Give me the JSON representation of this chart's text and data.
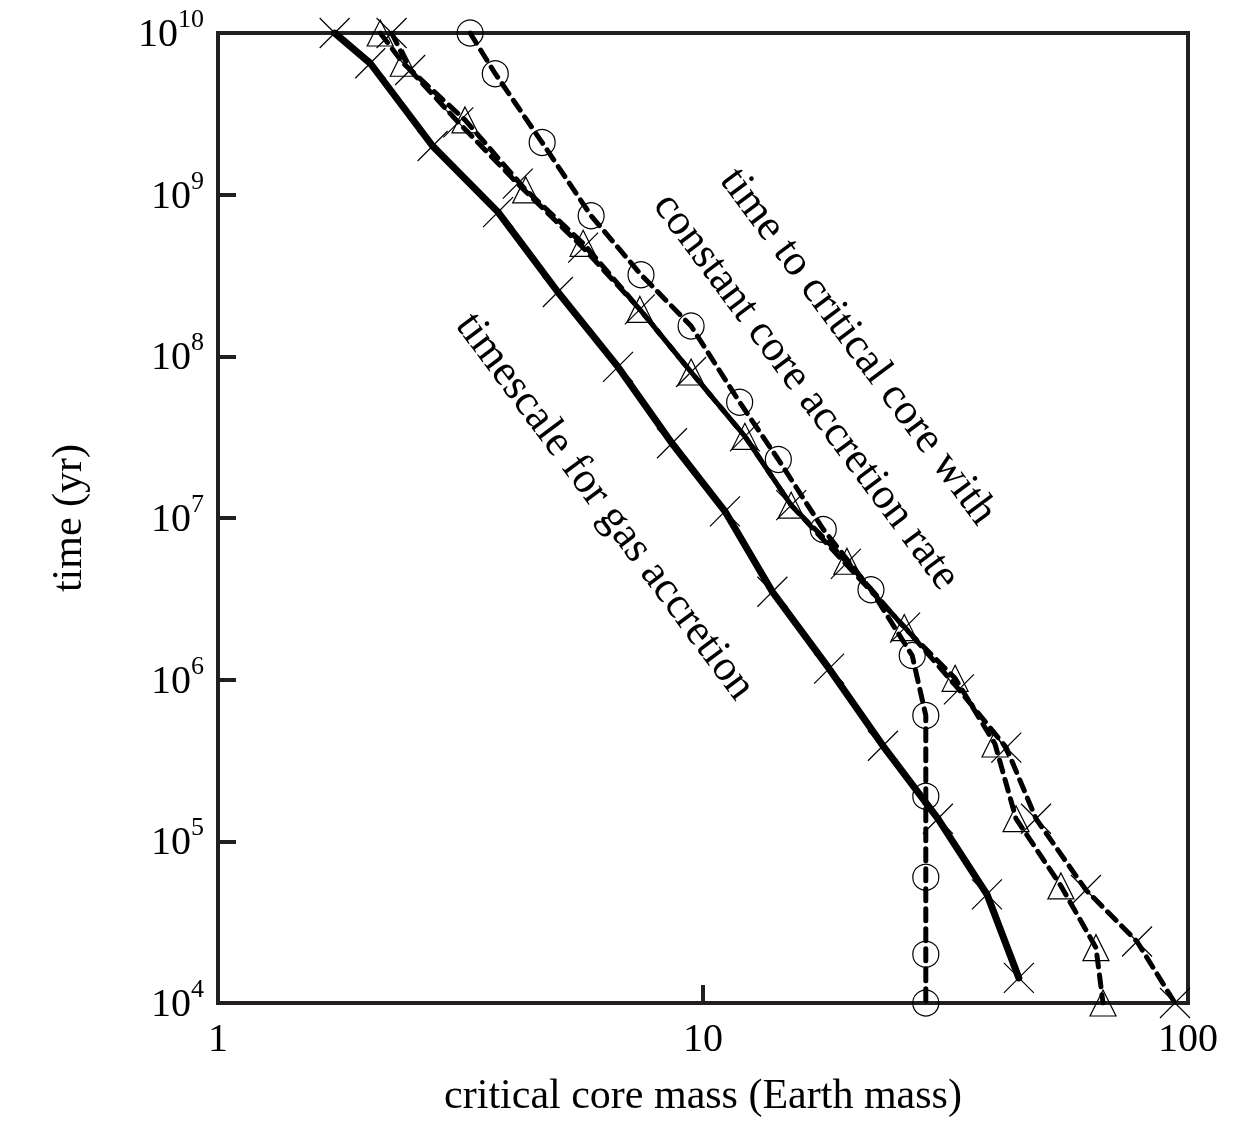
{
  "chart_data": {
    "type": "line",
    "xlabel": "critical core mass (Earth mass)",
    "ylabel": "time (yr)",
    "log": "xy",
    "xlim": [
      1,
      100
    ],
    "xticks": [
      1,
      10,
      100
    ],
    "ylim": [
      10000,
      10000000000
    ],
    "yticks": [
      {
        "value": 10000,
        "label": "10$^{4}$"
      },
      {
        "value": 100000,
        "label": "10$^{5}$"
      },
      {
        "value": 1000000,
        "label": "10$^{6}$"
      },
      {
        "value": 10000000,
        "label": "10$^{7}$"
      },
      {
        "value": 100000000,
        "label": "10$^{8}$"
      },
      {
        "value": 1000000000,
        "label": "10$^{9}$"
      },
      {
        "value": 10000000000,
        "label": "10$^{10}$"
      }
    ],
    "grid": false,
    "annotations": [
      "time to critical core with",
      "constant core accretion rate",
      "timescale for gas accretion"
    ],
    "series": [
      {
        "color": "#000000",
        "line_style": "solid",
        "marker": "cross",
        "x": [
          1.74,
          2.06,
          2.77,
          3.78,
          5.02,
          6.68,
          8.63,
          11.1,
          13.9,
          18.2,
          23.5,
          30.5,
          38.5,
          44.8
        ],
        "values": [
          10000000000,
          6500000000,
          2000000000,
          780000000,
          250000000,
          86000000,
          29000000,
          11000000,
          3500000,
          1170000,
          390000,
          138000,
          47000,
          14300
        ]
      },
      {
        "color": "#000000",
        "line_style": "dashed",
        "marker": "circle",
        "x": [
          3.31,
          3.73,
          4.66,
          5.88,
          7.45,
          9.45,
          11.9,
          14.3,
          17.7,
          22.2,
          27.0,
          28.8,
          28.8,
          28.8,
          28.8,
          28.8
        ],
        "values": [
          10000000000,
          5600000000,
          2100000000,
          740000000,
          320000000,
          154000000,
          52000000,
          23000000,
          8500000,
          3600000,
          1410000,
          600000,
          190000,
          60000,
          20000,
          10000
        ]
      },
      {
        "color": "#000000",
        "line_style": "dashed",
        "marker": "triangle",
        "x": [
          2.16,
          2.41,
          3.23,
          4.31,
          5.66,
          7.41,
          9.45,
          12.2,
          15.2,
          19.8,
          26.0,
          33.1,
          40.0,
          44.2,
          54.7,
          64.6,
          66.8
        ],
        "values": [
          10000000000,
          6500000000,
          2900000000,
          1070000000,
          500000000,
          195000000,
          80000000,
          32000000,
          12000000,
          5400000,
          2100000,
          1020000,
          400000,
          138000,
          53000,
          22000,
          10000
        ]
      },
      {
        "color": "#000000",
        "line_style": "dashed",
        "marker": "cross",
        "x": [
          2.28,
          2.49,
          3.13,
          4.15,
          5.66,
          7.41,
          9.45,
          12.2,
          15.2,
          19.7,
          26.1,
          33.7,
          42.2,
          48.6,
          61.6,
          78.5,
          94.0
        ],
        "values": [
          10000000000,
          5900000000,
          2800000000,
          1170000000,
          470000000,
          195000000,
          80000000,
          32000000,
          12000000,
          5200000,
          2100000,
          870000,
          380000,
          138000,
          50000,
          24000,
          10000
        ]
      }
    ]
  }
}
